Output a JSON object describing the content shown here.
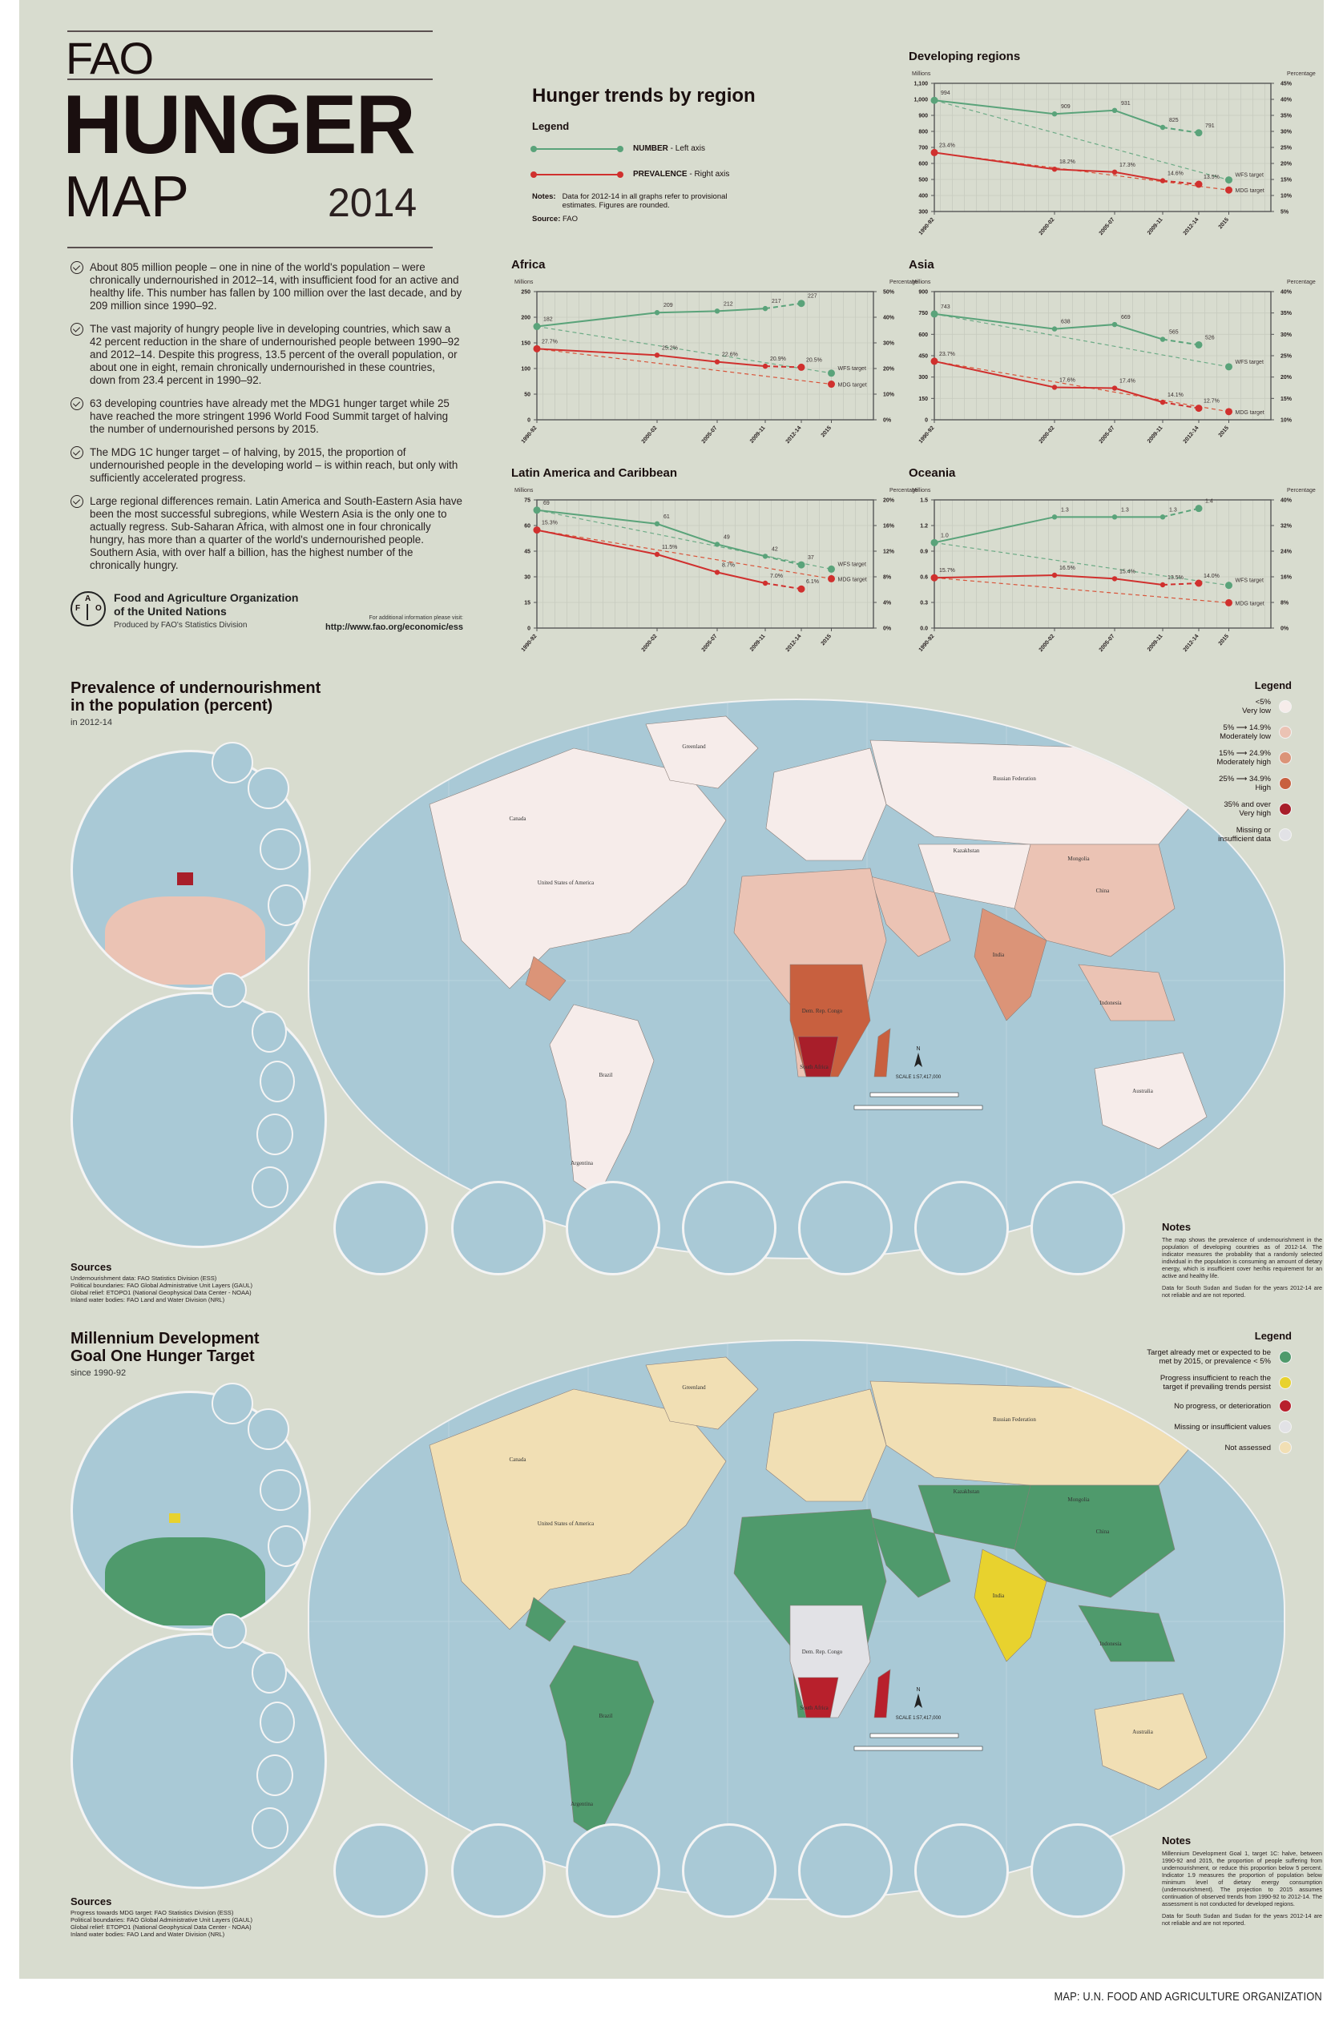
{
  "poster": {
    "title_line1": "FAO",
    "title_line2": "HUNGER",
    "title_line3": "MAP",
    "year": "2014",
    "credit": "MAP: U.N. FOOD AND AGRICULTURE ORGANIZATION"
  },
  "bullets": [
    "About 805 million people – one in nine of the world's population – were chronically undernourished in 2012–14, with insufficient food for an active and healthy life. This number has fallen by 100 million over the last decade, and by 209 million since 1990–92.",
    "The vast majority of hungry people live in developing countries, which saw a 42 percent reduction in the share of undernourished people between 1990–92 and 2012–14. Despite this progress, 13.5 percent of the overall population, or about one in eight, remain chronically undernourished in these countries, down from 23.4 percent in 1990–92.",
    "63 developing countries have already met the MDG1 hunger target while 25 have reached the more stringent 1996 World Food Summit target of halving the number of undernourished persons by 2015.",
    "The MDG 1C hunger target – of halving, by 2015, the proportion of undernourished people in the developing world – is within reach, but only with sufficiently accelerated progress.",
    "Large regional differences remain. Latin America and South-Eastern Asia have been the most successful subregions, while Western Asia is the only one to actually regress. Sub-Saharan Africa, with almost one in four chronically hungry, has more than a quarter of the world's undernourished people. Southern Asia, with over half a billion, has the highest number of the chronically hungry."
  ],
  "org": {
    "name_line1": "Food and Agriculture Organization",
    "name_line2": "of the United Nations",
    "produced_by": "Produced by FAO's Statistics Division",
    "visit_label": "For additional information please visit:",
    "url": "http://www.fao.org/economic/ess",
    "logo_letters": [
      "F",
      "A",
      "O"
    ]
  },
  "trends": {
    "title": "Hunger trends by region",
    "legend_title": "Legend",
    "legend": [
      {
        "bold": "NUMBER",
        "rest": " - Left axis",
        "color": "#5aa37a"
      },
      {
        "bold": "PREVALENCE",
        "rest": " - Right axis",
        "color": "#d0302e"
      }
    ],
    "notes_label": "Notes:",
    "notes_text": "Data for 2012-14 in all graphs refer to provisional estimates. Figures are rounded.",
    "source_label": "Source:",
    "source_text": "FAO",
    "left_axis_label": "Millions",
    "right_axis_label": "Percentage",
    "wfs_label": "WFS target",
    "mdg_label": "MDG target"
  },
  "chart_data": [
    {
      "type": "line",
      "title": "Developing regions",
      "categories": [
        "1990-92",
        "2000-02",
        "2005-07",
        "2009-11",
        "2012-14",
        "2015"
      ],
      "x_pos": [
        1990.5,
        2000.5,
        2005.5,
        2009.5,
        2012.5,
        2015
      ],
      "ylabel": "Millions",
      "y2label": "Percentage",
      "ylim": [
        300,
        1100
      ],
      "yticks": [
        "300",
        "400",
        "500",
        "600",
        "700",
        "800",
        "900",
        "1,000",
        "1,100"
      ],
      "y2lim": [
        5,
        45
      ],
      "y2ticks": [
        "5%",
        "10%",
        "15%",
        "20%",
        "25%",
        "30%",
        "35%",
        "40%",
        "45%"
      ],
      "series": [
        {
          "name": "NUMBER",
          "axis": "left",
          "values": [
            994,
            909,
            931,
            825,
            791
          ],
          "labels": [
            "994",
            "909",
            "931",
            "825",
            "791"
          ]
        },
        {
          "name": "PREVALENCE",
          "axis": "right",
          "values": [
            23.4,
            18.2,
            17.3,
            14.6,
            13.5
          ],
          "labels": [
            "23.4%",
            "18.2%",
            "17.3%",
            "14.6%",
            "13.5%"
          ]
        }
      ],
      "wfs_target": 497,
      "mdg_target": 11.7
    },
    {
      "type": "line",
      "title": "Africa",
      "categories": [
        "1990-92",
        "2000-02",
        "2005-07",
        "2009-11",
        "2012-14",
        "2015"
      ],
      "x_pos": [
        1990.5,
        2000.5,
        2005.5,
        2009.5,
        2012.5,
        2015
      ],
      "ylabel": "Millions",
      "y2label": "Percentage",
      "ylim": [
        0,
        250
      ],
      "yticks": [
        "0",
        "50",
        "100",
        "150",
        "200",
        "250"
      ],
      "y2lim": [
        0,
        50
      ],
      "y2ticks": [
        "0%",
        "10%",
        "20%",
        "30%",
        "40%",
        "50%"
      ],
      "series": [
        {
          "name": "NUMBER",
          "axis": "left",
          "values": [
            182,
            209,
            212,
            217,
            227
          ],
          "labels": [
            "182",
            "209",
            "212",
            "217",
            "227"
          ]
        },
        {
          "name": "PREVALENCE",
          "axis": "right",
          "values": [
            27.7,
            25.2,
            22.6,
            20.9,
            20.5
          ],
          "labels": [
            "27.7%",
            "25.2%",
            "22.6%",
            "20.9%",
            "20.5%"
          ]
        }
      ],
      "wfs_target": 91,
      "mdg_target": 13.9
    },
    {
      "type": "line",
      "title": "Asia",
      "categories": [
        "1990-92",
        "2000-02",
        "2005-07",
        "2009-11",
        "2012-14",
        "2015"
      ],
      "x_pos": [
        1990.5,
        2000.5,
        2005.5,
        2009.5,
        2012.5,
        2015
      ],
      "ylabel": "Millions",
      "y2label": "Percentage",
      "ylim": [
        0,
        900
      ],
      "yticks": [
        "0",
        "150",
        "300",
        "450",
        "600",
        "750",
        "900"
      ],
      "y2lim": [
        10,
        40
      ],
      "y2ticks": [
        "10%",
        "15%",
        "20%",
        "25%",
        "30%",
        "35%",
        "40%"
      ],
      "series": [
        {
          "name": "NUMBER",
          "axis": "left",
          "values": [
            743,
            638,
            669,
            565,
            526
          ],
          "labels": [
            "743",
            "638",
            "669",
            "565",
            "526"
          ]
        },
        {
          "name": "PREVALENCE",
          "axis": "right",
          "values": [
            23.7,
            17.6,
            17.4,
            14.1,
            12.7
          ],
          "labels": [
            "23.7%",
            "17.6%",
            "17.4%",
            "14.1%",
            "12.7%"
          ]
        }
      ],
      "wfs_target": 372,
      "mdg_target": 11.9
    },
    {
      "type": "line",
      "title": "Latin America and Caribbean",
      "categories": [
        "1990-92",
        "2000-02",
        "2005-07",
        "2009-11",
        "2012-14",
        "2015"
      ],
      "x_pos": [
        1990.5,
        2000.5,
        2005.5,
        2009.5,
        2012.5,
        2015
      ],
      "ylabel": "Millions",
      "y2label": "Percentage",
      "ylim": [
        0,
        75
      ],
      "yticks": [
        "0",
        "15",
        "30",
        "45",
        "60",
        "75"
      ],
      "y2lim": [
        0,
        20
      ],
      "y2ticks": [
        "0%",
        "4%",
        "8%",
        "12%",
        "16%",
        "20%"
      ],
      "series": [
        {
          "name": "NUMBER",
          "axis": "left",
          "values": [
            69,
            61,
            49,
            42,
            37
          ],
          "labels": [
            "69",
            "61",
            "49",
            "42",
            "37"
          ]
        },
        {
          "name": "PREVALENCE",
          "axis": "right",
          "values": [
            15.3,
            11.5,
            8.7,
            7.0,
            6.1
          ],
          "labels": [
            "15.3%",
            "11.5%",
            "8.7%",
            "7.0%",
            "6.1%"
          ]
        }
      ],
      "wfs_target": 34.5,
      "mdg_target": 7.7
    },
    {
      "type": "line",
      "title": "Oceania",
      "categories": [
        "1990-92",
        "2000-02",
        "2005-07",
        "2009-11",
        "2012-14",
        "2015"
      ],
      "x_pos": [
        1990.5,
        2000.5,
        2005.5,
        2009.5,
        2012.5,
        2015
      ],
      "ylabel": "Millions",
      "y2label": "Percentage",
      "ylim": [
        0,
        1.5
      ],
      "yticks": [
        "0.0",
        "0.3",
        "0.6",
        "0.9",
        "1.2",
        "1.5"
      ],
      "y2lim": [
        0,
        40
      ],
      "y2ticks": [
        "0%",
        "8%",
        "16%",
        "24%",
        "32%",
        "40%"
      ],
      "series": [
        {
          "name": "NUMBER",
          "axis": "left",
          "values": [
            1.0,
            1.3,
            1.3,
            1.3,
            1.4
          ],
          "labels": [
            "1.0",
            "1.3",
            "1.3",
            "1.3",
            "1.4"
          ]
        },
        {
          "name": "PREVALENCE",
          "axis": "right",
          "values": [
            15.7,
            16.5,
            15.4,
            13.5,
            14.0
          ],
          "labels": [
            "15.7%",
            "16.5%",
            "15.4%",
            "13.5%",
            "14.0%"
          ]
        }
      ],
      "wfs_target": 0.5,
      "mdg_target": 7.9
    }
  ],
  "map1": {
    "title_line1": "Prevalence of undernourishment",
    "title_line2": "in the population (percent)",
    "subtitle": "in 2012-14",
    "legend_title": "Legend",
    "legend": [
      {
        "range": "<5%",
        "label": "Very low",
        "color": "#f6ecea"
      },
      {
        "range": "5% ⟶ 14.9%",
        "label": "Moderately low",
        "color": "#ebc3b4"
      },
      {
        "range": "15% ⟶ 24.9%",
        "label": "Moderately high",
        "color": "#db9478"
      },
      {
        "range": "25% ⟶ 34.9%",
        "label": "High",
        "color": "#c8603f"
      },
      {
        "range": "35% and over",
        "label": "Very high",
        "color": "#a81e2a"
      },
      {
        "range": "Missing or",
        "label": "insufficient data",
        "color": "#e2e2e6"
      }
    ],
    "notes_title": "Notes",
    "notes": [
      "The map shows the prevalence of undernourishment in the population of developing countries as of 2012-14. The indicator measures the probability that a randomly selected individual in the population is consuming an amount of dietary energy, which is insufficient cover her/his requirement for an active and healthy life.",
      "Data for South Sudan and Sudan for the years 2012-14 are not reliable and are not reported."
    ],
    "sources_title": "Sources",
    "sources": [
      "Undernourishment data:  FAO Statistics Division (ESS)",
      "Political boundaries:  FAO Global Administrative Unit Layers (GAUL)",
      "Global relief:  ETOPO1 (National Geophysical Data Center - NOAA)",
      "Inland water bodies:  FAO Land and Water Division (NRL)"
    ],
    "scale_text": "SCALE 1:57,417,000",
    "north": "N",
    "place_labels": [
      "Canada",
      "United States of America",
      "Greenland",
      "Russian Federation",
      "Brazil",
      "China",
      "India",
      "Australia",
      "Mongolia",
      "Kazakhstan",
      "Argentina",
      "Dem. Rep. Congo",
      "South Africa",
      "Indonesia"
    ]
  },
  "map2": {
    "title_line1": "Millennium Development",
    "title_line2": "Goal One Hunger Target",
    "subtitle": "since 1990-92",
    "legend_title": "Legend",
    "legend": [
      {
        "label": "Target already met or expected to be met by 2015, or prevalence < 5%",
        "color": "#4f9a6c"
      },
      {
        "label": "Progress insufficient to reach the target if prevailing trends persist",
        "color": "#e8d22e"
      },
      {
        "label": "No progress, or deterioration",
        "color": "#b8202c"
      },
      {
        "label": "Missing or insufficient values",
        "color": "#e2e2e6"
      },
      {
        "label": "Not assessed",
        "color": "#f1dfb4"
      }
    ],
    "notes_title": "Notes",
    "notes": [
      "Millennium Development Goal 1, target 1C: halve, between 1990-92 and 2015, the proportion of people suffering from undernourishment, or reduce this proportion below 5 percent. Indicator 1.9 measures the proportion of population below minimum level of dietary energy consumption (undernourishment). The projection to 2015 assumes continuation of observed trends from 1990-92 to 2012-14. The assessment is not conducted for developed regions.",
      "Data for South Sudan and Sudan for the years 2012-14 are not reliable and are not reported."
    ],
    "sources_title": "Sources",
    "sources": [
      "Progress towards MDG target:  FAO Statistics Division (ESS)",
      "Political boundaries:  FAO Global Administrative Unit Layers (GAUL)",
      "Global relief:  ETOPO1 (National Geophysical Data Center - NOAA)",
      "Inland water bodies:  FAO Land and Water Division (NRL)"
    ],
    "scale_text": "SCALE 1:57,417,000",
    "north": "N",
    "place_labels": [
      "Canada",
      "United States of America",
      "Greenland",
      "Russian Federation",
      "Brazil",
      "China",
      "India",
      "Australia",
      "Mongolia",
      "Kazakhstan",
      "Argentina",
      "Dem. Rep. Congo",
      "South Africa",
      "Indonesia"
    ]
  },
  "colors": {
    "background": "#d8dccf",
    "ocean": "#a9c9d6",
    "number_line": "#5aa37a",
    "prevalence_line": "#d0302e"
  }
}
